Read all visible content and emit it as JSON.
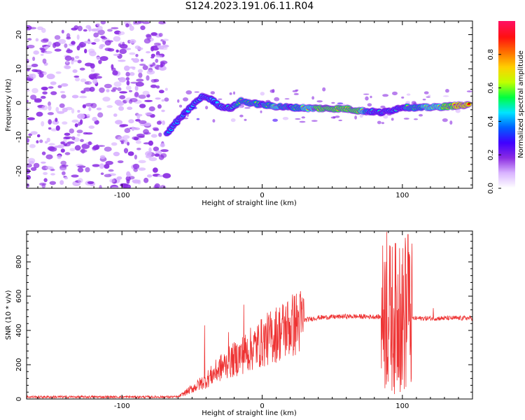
{
  "figure": {
    "title": "S124.2023.191.06.11.R04"
  },
  "chart_data": [
    {
      "type": "heatmap",
      "title": "S124.2023.191.06.11.R04",
      "xlabel": "Height of straight line (km)",
      "ylabel": "Frequency (Hz)",
      "xlim": [
        -168,
        150
      ],
      "ylim": [
        -25,
        24
      ],
      "x_ticks": [
        -100,
        0,
        100
      ],
      "x_tick_labels": [
        "-100",
        "0",
        "100"
      ],
      "y_ticks": [
        -20,
        -10,
        0,
        10,
        20
      ],
      "y_tick_labels": [
        "-20",
        "-10",
        "0",
        "10",
        "20"
      ],
      "colorbar": {
        "label": "Normalized spectral amplitude",
        "range": [
          0,
          1
        ],
        "ticks": [
          0.0,
          0.2,
          0.4,
          0.6,
          0.8
        ],
        "tick_labels": [
          "0.0",
          "0.2",
          "0.4",
          "0.6",
          "0.8"
        ],
        "colormap": [
          "#ffffff",
          "#d9b3ff",
          "#8a2be2",
          "#4000ff",
          "#0060ff",
          "#00e5ff",
          "#00ff40",
          "#c0ff00",
          "#ffd000",
          "#ff7000",
          "#ff1010",
          "#ff1060"
        ]
      },
      "noise_region": {
        "x": [
          -168,
          -68
        ],
        "y": [
          -25,
          24
        ]
      },
      "ridge": [
        {
          "x": -68,
          "y": -9,
          "amp": 0.35
        },
        {
          "x": -62,
          "y": -6,
          "amp": 0.35
        },
        {
          "x": -55,
          "y": -3,
          "amp": 0.4
        },
        {
          "x": -48,
          "y": 0,
          "amp": 0.45
        },
        {
          "x": -42,
          "y": 2,
          "amp": 0.45
        },
        {
          "x": -36,
          "y": 1,
          "amp": 0.45
        },
        {
          "x": -30,
          "y": -1,
          "amp": 0.5
        },
        {
          "x": -22,
          "y": -1.5,
          "amp": 0.55
        },
        {
          "x": -15,
          "y": 0.5,
          "amp": 0.7
        },
        {
          "x": -8,
          "y": 0,
          "amp": 0.7
        },
        {
          "x": 0,
          "y": -0.5,
          "amp": 0.6
        },
        {
          "x": 10,
          "y": -1,
          "amp": 0.75
        },
        {
          "x": 20,
          "y": -1.3,
          "amp": 0.6
        },
        {
          "x": 32,
          "y": -1.5,
          "amp": 0.75
        },
        {
          "x": 45,
          "y": -1.6,
          "amp": 0.85
        },
        {
          "x": 60,
          "y": -1.7,
          "amp": 0.85
        },
        {
          "x": 70,
          "y": -2.3,
          "amp": 0.8
        },
        {
          "x": 78,
          "y": -2.5,
          "amp": 0.55
        },
        {
          "x": 85,
          "y": -2.8,
          "amp": 0.55
        },
        {
          "x": 92,
          "y": -2.2,
          "amp": 0.5
        },
        {
          "x": 100,
          "y": -1.2,
          "amp": 0.6
        },
        {
          "x": 112,
          "y": -1.4,
          "amp": 0.7
        },
        {
          "x": 125,
          "y": -1.2,
          "amp": 0.75
        },
        {
          "x": 138,
          "y": -0.8,
          "amp": 0.9
        },
        {
          "x": 148,
          "y": -0.7,
          "amp": 0.9
        }
      ]
    },
    {
      "type": "line",
      "xlabel": "Height of straight line (km)",
      "ylabel": "SNR (10 * v/v)",
      "xlim": [
        -168,
        150
      ],
      "ylim": [
        0,
        980
      ],
      "x_ticks": [
        -100,
        0,
        100
      ],
      "x_tick_labels": [
        "-100",
        "0",
        "100"
      ],
      "y_ticks": [
        0,
        200,
        400,
        600,
        800
      ],
      "y_tick_labels": [
        "0",
        "200",
        "400",
        "600",
        "800"
      ],
      "color": "#ee3333",
      "envelope": [
        {
          "x": -168,
          "y": 12
        },
        {
          "x": -60,
          "y": 12
        },
        {
          "x": -50,
          "y": 60
        },
        {
          "x": -40,
          "y": 110
        },
        {
          "x": -30,
          "y": 180
        },
        {
          "x": -20,
          "y": 230
        },
        {
          "x": -10,
          "y": 280
        },
        {
          "x": 0,
          "y": 330
        },
        {
          "x": 10,
          "y": 380
        },
        {
          "x": 20,
          "y": 425
        },
        {
          "x": 30,
          "y": 460
        },
        {
          "x": 40,
          "y": 475
        },
        {
          "x": 60,
          "y": 482
        },
        {
          "x": 80,
          "y": 480
        },
        {
          "x": 110,
          "y": 470
        },
        {
          "x": 150,
          "y": 472
        }
      ],
      "spikes": [
        {
          "x": -41,
          "y": 430
        },
        {
          "x": -24,
          "y": 390
        },
        {
          "x": -13,
          "y": 550
        },
        {
          "x": 87,
          "y": 800
        },
        {
          "x": 89,
          "y": 975
        },
        {
          "x": 98,
          "y": 880
        },
        {
          "x": 102,
          "y": 940
        },
        {
          "x": 104,
          "y": 960
        },
        {
          "x": 122,
          "y": 530
        }
      ]
    }
  ]
}
